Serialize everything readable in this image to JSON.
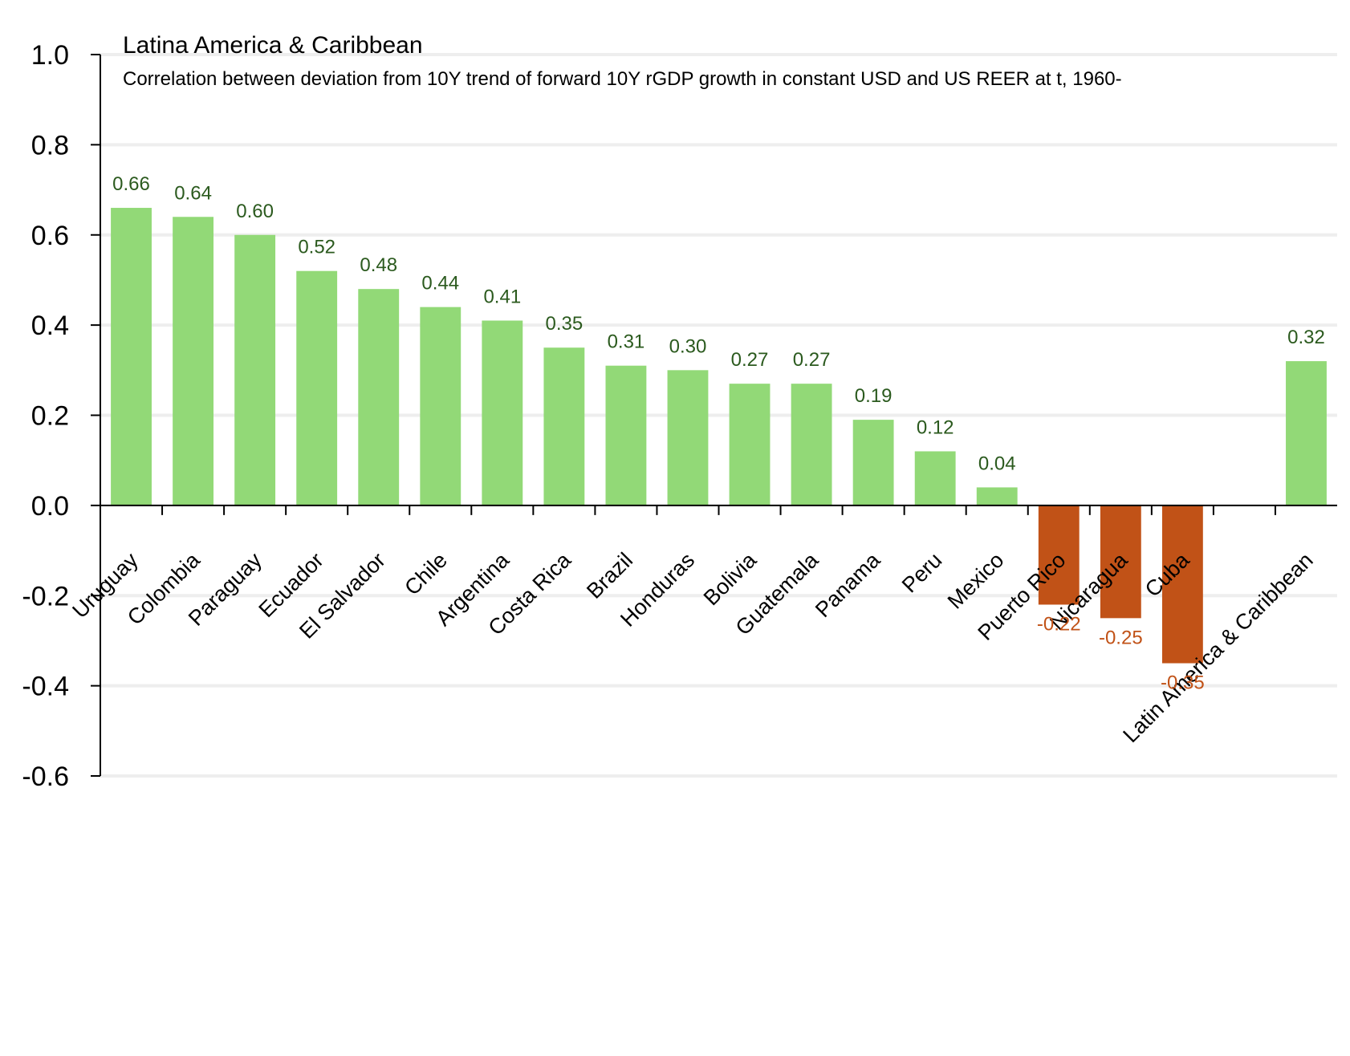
{
  "chart_data": {
    "type": "bar",
    "title": "Latina America & Caribbean",
    "subtitle": "Correlation between deviation from 10Y trend of forward 10Y rGDP growth in constant USD and US REER at t, 1960-",
    "xlabel": "",
    "ylabel": "",
    "ylim": [
      -0.6,
      1.0
    ],
    "yticks": [
      "1.0",
      "0.8",
      "0.6",
      "0.4",
      "0.2",
      "0.0",
      "-0.2",
      "-0.4",
      "-0.6"
    ],
    "ytick_values": [
      1.0,
      0.8,
      0.6,
      0.4,
      0.2,
      0.0,
      -0.2,
      -0.4,
      -0.6
    ],
    "grid": "horizontal",
    "legend": "none",
    "categories": [
      "Uruguay",
      "Colombia",
      "Paraguay",
      "Ecuador",
      "El Salvador",
      "Chile",
      "Argentina",
      "Costa Rica",
      "Brazil",
      "Honduras",
      "Bolivia",
      "Guatemala",
      "Panama",
      "Peru",
      "Mexico",
      "Puerto Rico",
      "Nicaragua",
      "Cuba",
      "",
      "Latin America & Caribbean"
    ],
    "values": [
      0.66,
      0.64,
      0.6,
      0.52,
      0.48,
      0.44,
      0.41,
      0.35,
      0.31,
      0.3,
      0.27,
      0.27,
      0.19,
      0.12,
      0.04,
      -0.22,
      -0.25,
      -0.35,
      null,
      0.32
    ],
    "labels": [
      "0.66",
      "0.64",
      "0.60",
      "0.52",
      "0.48",
      "0.44",
      "0.41",
      "0.35",
      "0.31",
      "0.30",
      "0.27",
      "0.27",
      "0.19",
      "0.12",
      "0.04",
      "-0.22",
      "-0.25",
      "-0.35",
      "",
      "0.32"
    ],
    "colors": {
      "positive_bar": "#92d977",
      "negative_bar": "#c15217",
      "positive_label": "#2b5a1e",
      "negative_label": "#c15217",
      "grid": "#eeeeee",
      "axis": "#000000"
    }
  }
}
